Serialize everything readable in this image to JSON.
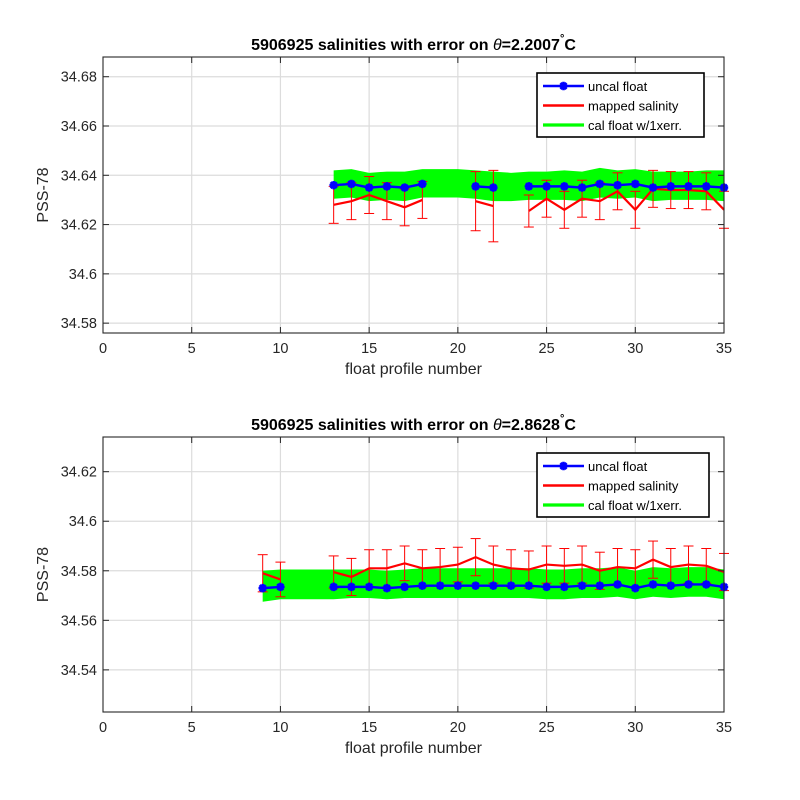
{
  "chart_data": [
    {
      "type": "line",
      "title_prefix": "5906925 salinities with error on ",
      "title_theta": "θ",
      "title_suffix": "=2.2007",
      "title_degree": "°",
      "title_unit": "C",
      "xlabel": "float profile number",
      "ylabel": "PSS-78",
      "xlim": [
        0,
        35
      ],
      "ylim": [
        34.576,
        34.688
      ],
      "xticks": [
        0,
        5,
        10,
        15,
        20,
        25,
        30,
        35
      ],
      "xtick_labels": [
        "0",
        "5",
        "10",
        "15",
        "20",
        "25",
        "30",
        "35"
      ],
      "yticks": [
        34.58,
        34.6,
        34.62,
        34.64,
        34.66,
        34.68
      ],
      "ytick_labels": [
        "34.58",
        "34.6",
        "34.62",
        "34.64",
        "34.66",
        "34.68"
      ],
      "grid": true,
      "legend_position": "top-right",
      "legend": [
        "uncal float",
        "mapped salinity",
        "cal float w/1xerr."
      ],
      "colors": {
        "uncal": "#0000ff",
        "mapped": "#ff0000",
        "band": "#00ff00",
        "axis": "#262626",
        "grid": "#dcdcdc"
      },
      "x": [
        13,
        14,
        15,
        16,
        17,
        18,
        19,
        20,
        21,
        22,
        23,
        24,
        25,
        26,
        27,
        28,
        29,
        30,
        31,
        32,
        33,
        34,
        35
      ],
      "series": [
        {
          "name": "uncal float",
          "values": [
            34.636,
            34.6365,
            34.635,
            34.6355,
            34.635,
            34.6365,
            null,
            null,
            34.6355,
            34.635,
            null,
            34.6355,
            34.6355,
            34.6355,
            34.635,
            34.6365,
            34.636,
            34.6365,
            34.635,
            34.6355,
            34.6355,
            34.6355,
            34.635
          ]
        },
        {
          "name": "mapped salinity",
          "values": [
            34.628,
            34.6295,
            34.632,
            34.6295,
            34.627,
            34.63,
            null,
            null,
            34.6295,
            34.6275,
            null,
            34.6255,
            34.6305,
            34.626,
            34.6305,
            34.6295,
            34.6335,
            34.626,
            34.6345,
            34.634,
            34.634,
            34.6335,
            34.626
          ],
          "error": [
            0.0075,
            0.0075,
            0.0075,
            0.0075,
            0.0075,
            0.0075,
            null,
            null,
            0.012,
            0.0145,
            null,
            0.0065,
            0.0075,
            0.0075,
            0.0075,
            0.0075,
            0.0075,
            0.0075,
            0.0075,
            0.0075,
            0.0075,
            0.0075,
            0.0075
          ]
        },
        {
          "name": "cal float w/1xerr.",
          "upper": [
            34.642,
            34.6425,
            34.641,
            34.6415,
            34.6415,
            34.6425,
            34.6425,
            34.6425,
            34.642,
            34.6415,
            34.641,
            34.6415,
            34.6415,
            34.642,
            34.6415,
            34.643,
            34.642,
            34.6425,
            34.6415,
            34.6415,
            34.6415,
            34.642,
            34.642
          ],
          "lower": [
            34.6305,
            34.631,
            34.6295,
            34.63,
            34.6295,
            34.631,
            34.631,
            34.631,
            34.6305,
            34.6295,
            34.6295,
            34.63,
            34.63,
            34.63,
            34.6295,
            34.631,
            34.6305,
            34.631,
            34.6295,
            34.63,
            34.63,
            34.63,
            34.6295
          ]
        }
      ]
    },
    {
      "type": "line",
      "title_prefix": "5906925 salinities with error on ",
      "title_theta": "θ",
      "title_suffix": "=2.8628",
      "title_degree": "°",
      "title_unit": "C",
      "xlabel": "float profile number",
      "ylabel": "PSS-78",
      "xlim": [
        0,
        35
      ],
      "ylim": [
        34.523,
        34.634
      ],
      "xticks": [
        0,
        5,
        10,
        15,
        20,
        25,
        30,
        35
      ],
      "xtick_labels": [
        "0",
        "5",
        "10",
        "15",
        "20",
        "25",
        "30",
        "35"
      ],
      "yticks": [
        34.54,
        34.56,
        34.58,
        34.6,
        34.62
      ],
      "ytick_labels": [
        "34.54",
        "34.56",
        "34.58",
        "34.6",
        "34.62"
      ],
      "grid": true,
      "legend_position": "top-right",
      "legend": [
        "uncal float",
        "mapped salinity",
        "cal float w/1xerr."
      ],
      "colors": {
        "uncal": "#0000ff",
        "mapped": "#ff0000",
        "band": "#00ff00",
        "axis": "#262626",
        "grid": "#dcdcdc"
      },
      "x": [
        9,
        10,
        11,
        12,
        13,
        14,
        15,
        16,
        17,
        18,
        19,
        20,
        21,
        22,
        23,
        24,
        25,
        26,
        27,
        28,
        29,
        30,
        31,
        32,
        33,
        34,
        35
      ],
      "series": [
        {
          "name": "uncal float",
          "values": [
            34.573,
            34.5735,
            null,
            null,
            34.5735,
            34.5735,
            34.5735,
            34.573,
            34.5735,
            34.574,
            34.574,
            34.574,
            34.574,
            34.574,
            34.574,
            34.574,
            34.5735,
            34.5735,
            34.574,
            34.574,
            34.5745,
            34.573,
            34.5745,
            34.574,
            34.5745,
            34.5745,
            34.5735
          ]
        },
        {
          "name": "mapped salinity",
          "values": [
            34.579,
            34.5765,
            null,
            null,
            34.5795,
            34.5775,
            34.581,
            34.581,
            34.583,
            34.581,
            34.5815,
            34.5825,
            34.5855,
            34.5825,
            34.581,
            34.5805,
            34.5825,
            34.582,
            34.5825,
            34.58,
            34.5815,
            34.581,
            34.5845,
            34.5815,
            34.5825,
            34.582,
            34.5795
          ],
          "error": [
            0.0075,
            0.007,
            null,
            null,
            0.0065,
            0.0075,
            0.0075,
            0.0075,
            0.007,
            0.0075,
            0.0075,
            0.007,
            0.0075,
            0.0075,
            0.0075,
            0.0075,
            0.0075,
            0.007,
            0.0075,
            0.0075,
            0.0075,
            0.0075,
            0.0075,
            0.0075,
            0.0075,
            0.007,
            0.0075
          ]
        },
        {
          "name": "cal float w/1xerr.",
          "upper": [
            34.58,
            34.5805,
            34.5805,
            34.5805,
            34.5805,
            34.5805,
            34.5805,
            34.58,
            34.5805,
            34.581,
            34.581,
            34.581,
            34.581,
            34.581,
            34.581,
            34.581,
            34.5805,
            34.5805,
            34.581,
            34.581,
            34.5815,
            34.58,
            34.5815,
            34.581,
            34.5815,
            34.5815,
            34.5805
          ],
          "lower": [
            34.5675,
            34.5685,
            34.5685,
            34.5685,
            34.5685,
            34.569,
            34.569,
            34.5685,
            34.569,
            34.569,
            34.569,
            34.569,
            34.569,
            34.569,
            34.569,
            34.569,
            34.5685,
            34.5685,
            34.569,
            34.569,
            34.5695,
            34.5685,
            34.5695,
            34.569,
            34.5695,
            34.5695,
            34.5685
          ]
        }
      ]
    }
  ]
}
